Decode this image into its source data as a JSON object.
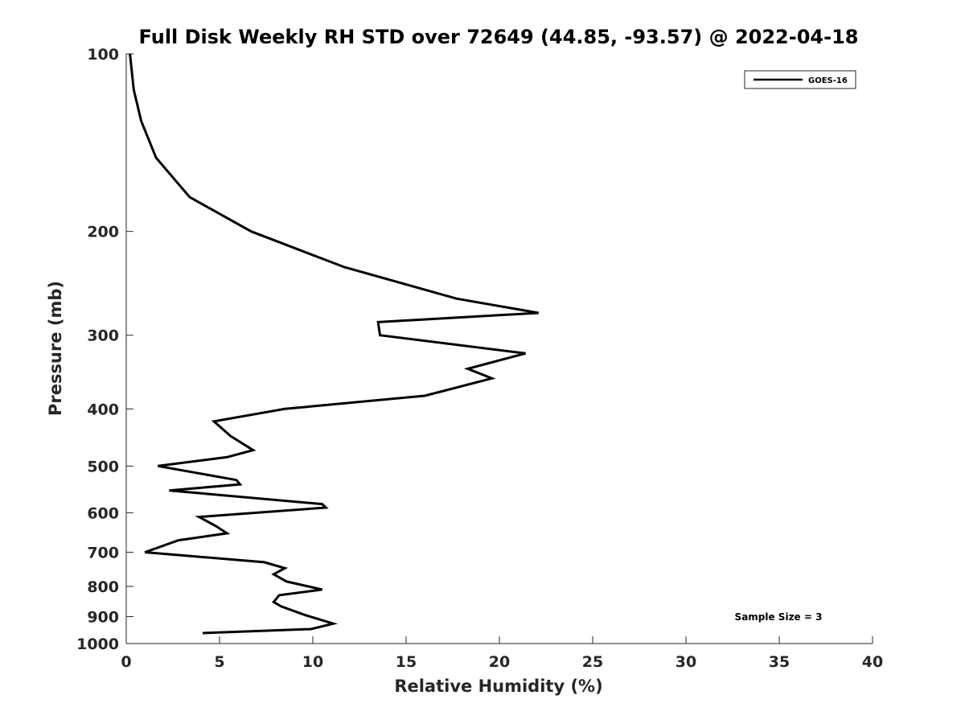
{
  "chart_data": {
    "type": "line",
    "title": "Full Disk Weekly RH STD over 72649 (44.85, -93.57) @ 2022-04-18",
    "xlabel": "Relative Humidity (%)",
    "ylabel": "Pressure (mb)",
    "xlim": [
      0,
      40
    ],
    "ylim": [
      100,
      1000
    ],
    "yscale": "log",
    "yreversed": true,
    "x_ticks": [
      0,
      5,
      10,
      15,
      20,
      25,
      30,
      35,
      40
    ],
    "y_ticks": [
      100,
      200,
      300,
      400,
      500,
      600,
      700,
      800,
      900,
      1000
    ],
    "grid": false,
    "legend_position": "top-right",
    "series": [
      {
        "name": "GOES-16",
        "color": "#000000",
        "x": [
          0.2,
          0.4,
          0.8,
          1.6,
          3.4,
          6.7,
          11.7,
          17.7,
          22.1,
          13.5,
          13.6,
          21.4,
          18.3,
          19.6,
          16.0,
          8.5,
          4.7,
          5.6,
          6.8,
          5.4,
          1.7,
          5.9,
          6.1,
          2.3,
          10.5,
          10.7,
          3.9,
          4.8,
          5.4,
          2.8,
          1.0,
          7.4,
          8.5,
          7.9,
          8.6,
          10.5,
          8.2,
          7.9,
          8.3,
          9.6,
          11.1,
          9.9,
          4.1
        ],
        "y": [
          100,
          115,
          130,
          150,
          175,
          200,
          230,
          260,
          275,
          285,
          300,
          322,
          342,
          355,
          380,
          400,
          420,
          445,
          470,
          483,
          500,
          528,
          537,
          550,
          580,
          588,
          610,
          632,
          650,
          668,
          700,
          728,
          745,
          763,
          785,
          810,
          828,
          850,
          865,
          895,
          925,
          945,
          960
        ]
      }
    ],
    "annotations": [
      "Sample Size = 3"
    ]
  }
}
